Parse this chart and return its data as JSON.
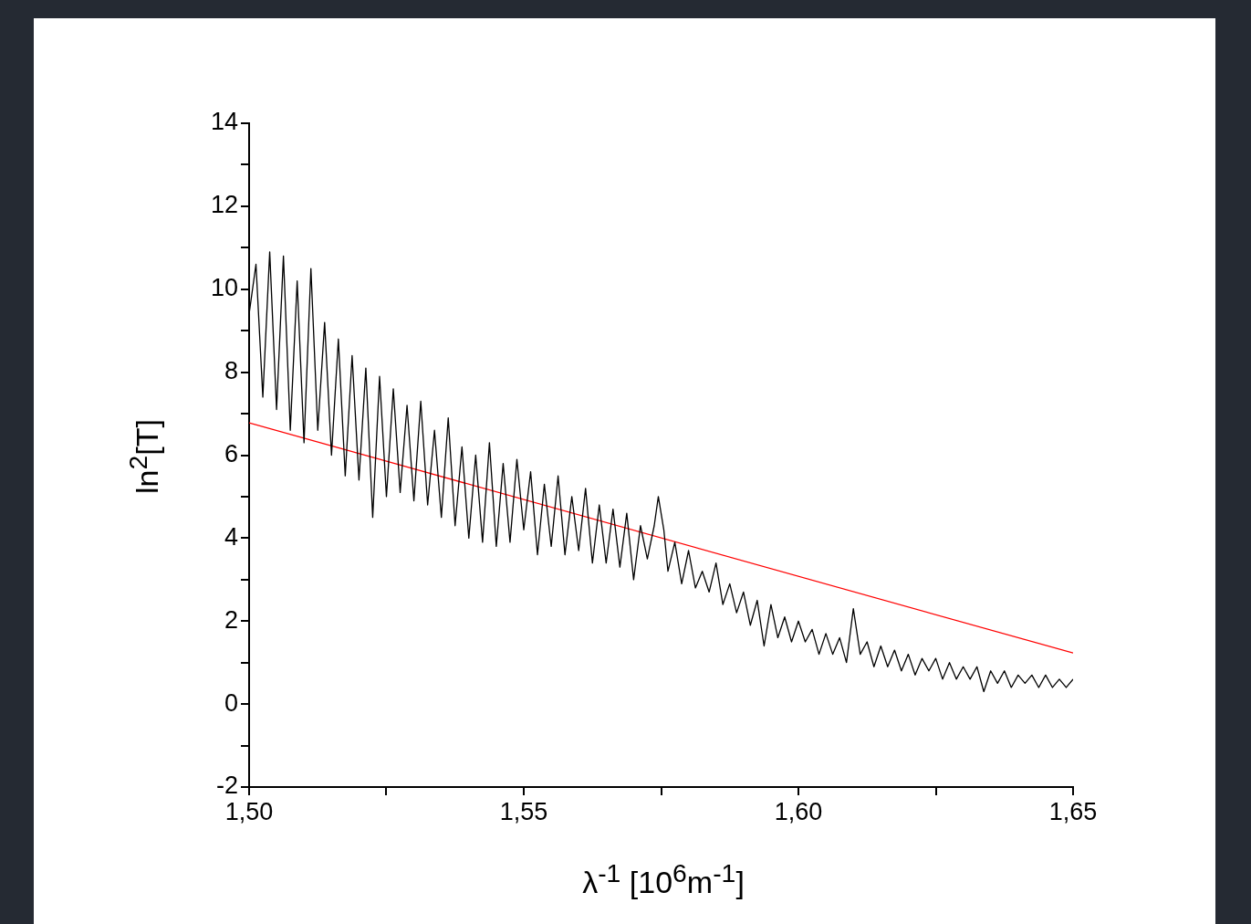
{
  "chart_data": {
    "type": "line",
    "xlabel": "λ$^{-1}$ [10$^{6}$m$^{-1}$]",
    "ylabel": "ln$^{2}$[T]",
    "xlim": [
      1.5,
      1.65
    ],
    "ylim": [
      -2,
      14
    ],
    "xticks": [
      {
        "value": 1.5,
        "label": "1,50"
      },
      {
        "value": 1.525,
        "label": null
      },
      {
        "value": 1.55,
        "label": "1,55"
      },
      {
        "value": 1.575,
        "label": null
      },
      {
        "value": 1.6,
        "label": "1,60"
      },
      {
        "value": 1.625,
        "label": null
      },
      {
        "value": 1.65,
        "label": "1,65"
      }
    ],
    "yticks": [
      -2,
      {
        "value": -1,
        "label": null
      },
      0,
      {
        "value": 1,
        "label": null
      },
      2,
      {
        "value": 3,
        "label": null
      },
      4,
      {
        "value": 5,
        "label": null
      },
      6,
      {
        "value": 7,
        "label": null
      },
      8,
      {
        "value": 9,
        "label": null
      },
      10,
      {
        "value": 11,
        "label": null
      },
      12,
      {
        "value": 13,
        "label": null
      },
      14
    ],
    "series": [
      {
        "color": "#000000",
        "x": [
          1.5,
          1.50125,
          1.5025,
          1.50375,
          1.505,
          1.50625,
          1.5075,
          1.50875,
          1.51,
          1.51125,
          1.5125,
          1.51375,
          1.515,
          1.51625,
          1.5175,
          1.51875,
          1.52,
          1.52125,
          1.5225,
          1.52375,
          1.525,
          1.52625,
          1.5275,
          1.52875,
          1.53,
          1.53125,
          1.5325,
          1.53375,
          1.535,
          1.53625,
          1.5375,
          1.53875,
          1.54,
          1.54125,
          1.5425,
          1.54375,
          1.545,
          1.54625,
          1.5475,
          1.54875,
          1.55,
          1.55125,
          1.5525,
          1.55375,
          1.555,
          1.55625,
          1.5575,
          1.55875,
          1.56,
          1.56125,
          1.5625,
          1.56375,
          1.565,
          1.56625,
          1.5675,
          1.56875,
          1.57,
          1.57125,
          1.5725,
          1.57375,
          1.5745,
          1.5755,
          1.57625,
          1.5775,
          1.57875,
          1.58,
          1.58125,
          1.5825,
          1.58375,
          1.585,
          1.58625,
          1.5875,
          1.58875,
          1.59,
          1.59125,
          1.5925,
          1.59375,
          1.595,
          1.59625,
          1.5975,
          1.59875,
          1.6,
          1.60125,
          1.6025,
          1.60375,
          1.605,
          1.60625,
          1.6075,
          1.60875,
          1.61,
          1.61125,
          1.6125,
          1.61375,
          1.615,
          1.61625,
          1.6175,
          1.61875,
          1.62,
          1.62125,
          1.6225,
          1.62375,
          1.625,
          1.62625,
          1.6275,
          1.62875,
          1.63,
          1.63125,
          1.6325,
          1.63375,
          1.635,
          1.63625,
          1.6375,
          1.63875,
          1.64,
          1.64125,
          1.6425,
          1.64375,
          1.645,
          1.64625,
          1.6475,
          1.64875,
          1.65
        ],
        "values": [
          9.4,
          10.6,
          7.4,
          10.9,
          7.1,
          10.8,
          6.6,
          10.2,
          6.3,
          10.5,
          6.6,
          9.2,
          6.0,
          8.8,
          5.5,
          8.4,
          5.4,
          8.1,
          4.5,
          7.9,
          5.0,
          7.6,
          5.1,
          7.2,
          4.9,
          7.3,
          4.8,
          6.6,
          4.5,
          6.9,
          4.3,
          6.2,
          4.0,
          6.0,
          3.9,
          6.3,
          3.8,
          5.8,
          3.9,
          5.9,
          4.2,
          5.6,
          3.6,
          5.3,
          3.8,
          5.5,
          3.6,
          5.0,
          3.7,
          5.2,
          3.4,
          4.8,
          3.4,
          4.7,
          3.3,
          4.6,
          3.0,
          4.3,
          3.5,
          4.3,
          5.0,
          4.2,
          3.2,
          3.9,
          2.9,
          3.7,
          2.8,
          3.2,
          2.7,
          3.4,
          2.4,
          2.9,
          2.2,
          2.7,
          1.9,
          2.5,
          1.4,
          2.4,
          1.6,
          2.1,
          1.5,
          2.0,
          1.5,
          1.8,
          1.2,
          1.7,
          1.2,
          1.6,
          1.0,
          2.3,
          1.2,
          1.5,
          0.9,
          1.4,
          0.9,
          1.3,
          0.8,
          1.2,
          0.7,
          1.1,
          0.8,
          1.1,
          0.6,
          1.0,
          0.6,
          0.9,
          0.6,
          0.9,
          0.3,
          0.8,
          0.5,
          0.8,
          0.4,
          0.7,
          0.5,
          0.7,
          0.4,
          0.7,
          0.4,
          0.6,
          0.4,
          0.6
        ]
      },
      {
        "color": "#ff0000",
        "x": [
          1.5,
          1.65
        ],
        "values": [
          6.78,
          1.23
        ]
      }
    ]
  }
}
